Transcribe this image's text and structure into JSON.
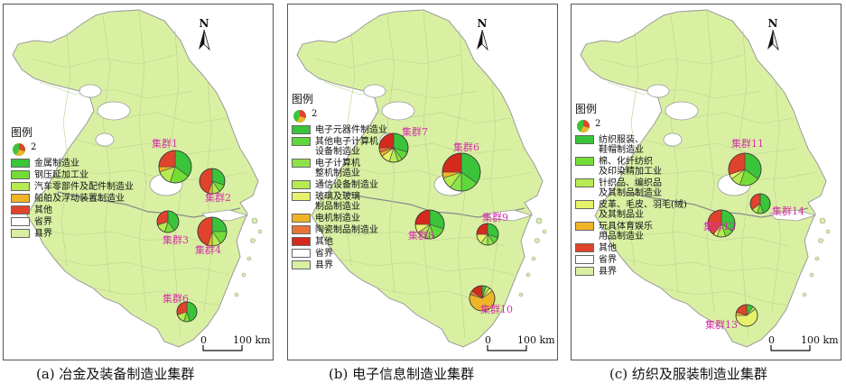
{
  "colors": {
    "county_fill": "#d9f0a3",
    "county_border": "#b9d08a",
    "province_border": "#9a9a9a",
    "water": "#ffffff",
    "cluster_label": "#d531a8"
  },
  "common": {
    "north_label": "N",
    "legend_title": "图例",
    "pie_key_value": "2",
    "scale_zero": "0",
    "scale_value": "100 km",
    "province_border_label": "省界",
    "county_label": "县界"
  },
  "panels": [
    {
      "caption": "(a) 冶金及装备制造业集群",
      "legend": [
        {
          "label": "金属制造业",
          "color": "#3ac43a"
        },
        {
          "label": "钢压延加工业",
          "color": "#73dd36"
        },
        {
          "label": "汽车零部件及配件制造业",
          "color": "#b6eb52"
        },
        {
          "label": "船舶及浮动装置制造业",
          "color": "#f0b429"
        },
        {
          "label": "其他",
          "color": "#e0432b"
        }
      ],
      "clusters": [
        {
          "label": "集群1",
          "slices": [
            0.35,
            0.2,
            0.15,
            0.05,
            0.25
          ]
        },
        {
          "label": "集群2",
          "slices": [
            0.3,
            0.1,
            0.1,
            0.05,
            0.45
          ]
        },
        {
          "label": "集群3",
          "slices": [
            0.4,
            0.15,
            0.15,
            0.0,
            0.3
          ]
        },
        {
          "label": "集群4",
          "slices": [
            0.25,
            0.15,
            0.1,
            0.05,
            0.45
          ]
        },
        {
          "label": "集群6",
          "slices": [
            0.45,
            0.1,
            0.15,
            0.0,
            0.3
          ]
        }
      ]
    },
    {
      "caption": "(b) 电子信息制造业集群",
      "legend": [
        {
          "label": "电子元器件制造业",
          "color": "#3ac43a"
        },
        {
          "label": "其他电子计算机\n设备制造业",
          "color": "#5fd83a"
        },
        {
          "label": "电子计算机\n整机制造业",
          "color": "#8ee34a"
        },
        {
          "label": "通信设备制造业",
          "color": "#b6eb52"
        },
        {
          "label": "玻璃及玻璃\n制品制造业",
          "color": "#e6f26a"
        },
        {
          "label": "电机制造业",
          "color": "#f0b429"
        },
        {
          "label": "陶瓷制品制造业",
          "color": "#e8743a"
        },
        {
          "label": "其他",
          "color": "#d42a1e"
        }
      ],
      "clusters": [
        {
          "label": "集群7",
          "slices": [
            0.3,
            0.1,
            0.05,
            0.1,
            0.1,
            0.05,
            0.05,
            0.25
          ]
        },
        {
          "label": "集群6",
          "slices": [
            0.35,
            0.15,
            0.1,
            0.1,
            0.0,
            0.05,
            0.0,
            0.25
          ]
        },
        {
          "label": "集群8",
          "slices": [
            0.3,
            0.15,
            0.1,
            0.1,
            0.1,
            0.0,
            0.0,
            0.25
          ]
        },
        {
          "label": "集群9",
          "slices": [
            0.3,
            0.1,
            0.1,
            0.1,
            0.15,
            0.0,
            0.0,
            0.25
          ]
        },
        {
          "label": "集群10",
          "slices": [
            0.05,
            0.0,
            0.0,
            0.05,
            0.05,
            0.65,
            0.05,
            0.15
          ]
        }
      ]
    },
    {
      "caption": "(c) 纺织及服装制造业集群",
      "legend": [
        {
          "label": "纺织服装、\n鞋帽制造业",
          "color": "#3ac43a"
        },
        {
          "label": "棉、化纤纺织\n及印染精加工业",
          "color": "#73dd36"
        },
        {
          "label": "针织品、编织品\n及其制品制造业",
          "color": "#b6eb52"
        },
        {
          "label": "皮革、毛皮、羽毛(绒)\n及其制品业",
          "color": "#e6f26a"
        },
        {
          "label": "玩具体育娱乐\n用品制造业",
          "color": "#f0b429"
        },
        {
          "label": "其他",
          "color": "#e0432b"
        }
      ],
      "clusters": [
        {
          "label": "集群11",
          "slices": [
            0.35,
            0.2,
            0.1,
            0.05,
            0.0,
            0.3
          ]
        },
        {
          "label": "集群14",
          "slices": [
            0.45,
            0.1,
            0.1,
            0.0,
            0.0,
            0.35
          ]
        },
        {
          "label": "集群12",
          "slices": [
            0.35,
            0.1,
            0.1,
            0.05,
            0.0,
            0.4
          ]
        },
        {
          "label": "集群13",
          "slices": [
            0.1,
            0.0,
            0.05,
            0.6,
            0.05,
            0.2
          ]
        }
      ]
    }
  ]
}
